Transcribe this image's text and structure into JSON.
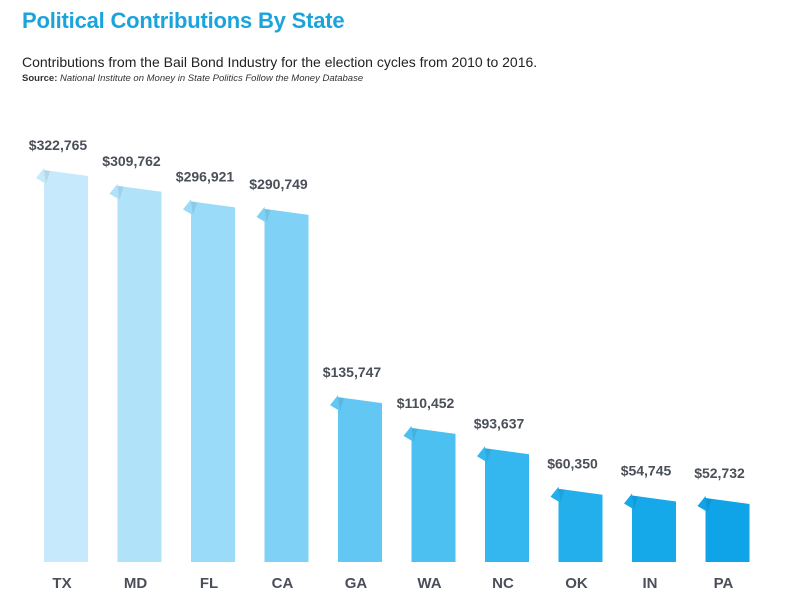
{
  "header": {
    "title": "Political Contributions By State",
    "subtitle": "Contributions from the Bail Bond Industry for the election cycles from 2010 to 2016.",
    "source_label": "Source:",
    "source_text": "National Institute on Money in State Politics Follow the Money Database"
  },
  "chart_data": {
    "type": "bar",
    "title": "Political Contributions By State",
    "xlabel": "",
    "ylabel": "",
    "ylim": [
      0,
      322765
    ],
    "grid": false,
    "categories": [
      "TX",
      "MD",
      "FL",
      "CA",
      "GA",
      "WA",
      "NC",
      "OK",
      "IN",
      "PA"
    ],
    "values": [
      322765,
      309762,
      296921,
      290749,
      135747,
      110452,
      93637,
      60350,
      54745,
      52732
    ],
    "value_labels": [
      "$322,765",
      "$309,762",
      "$296,921",
      "$290,749",
      "$135,747",
      "$110,452",
      "$93,637",
      "$60,350",
      "$54,745",
      "$52,732"
    ],
    "colors": [
      "#c6eafb",
      "#b0e2fa",
      "#99dbf8",
      "#7fd2f6",
      "#62c8f3",
      "#4cc0f1",
      "#34b7ee",
      "#22afec",
      "#16a9ea",
      "#0fa3e8"
    ]
  }
}
